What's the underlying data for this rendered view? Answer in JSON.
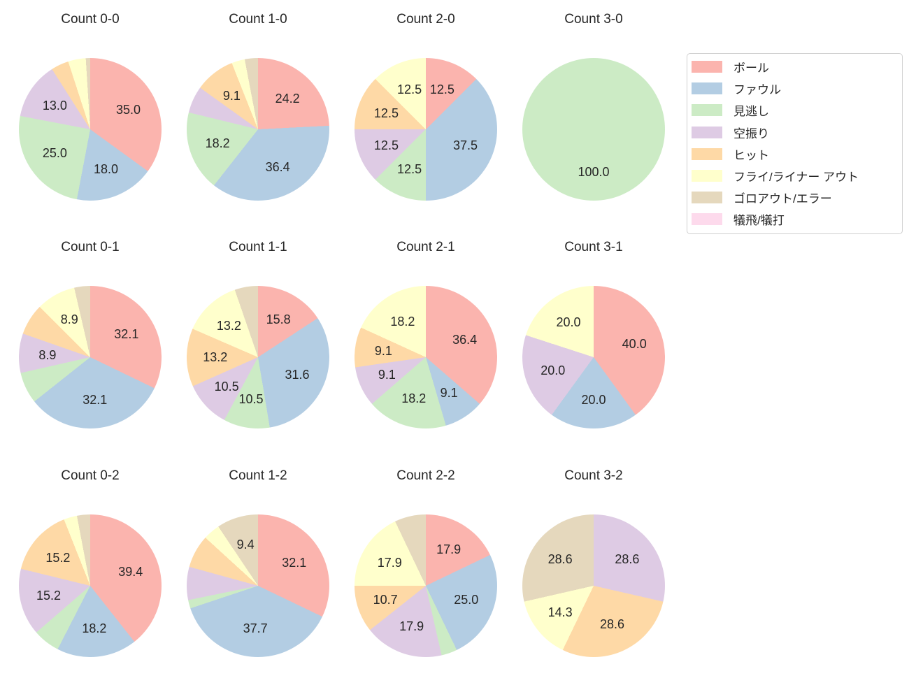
{
  "figure": {
    "background": "#ffffff",
    "text_color": "#262626"
  },
  "legend": {
    "border_color": "#d0d0d0",
    "items": [
      {
        "label": "ボール",
        "color": "#fbb4ae"
      },
      {
        "label": "ファウル",
        "color": "#b3cde3"
      },
      {
        "label": "見逃し",
        "color": "#ccebc5"
      },
      {
        "label": "空振り",
        "color": "#decbe4"
      },
      {
        "label": "ヒット",
        "color": "#fed9a6"
      },
      {
        "label": "フライ/ライナー アウト",
        "color": "#ffffcc"
      },
      {
        "label": "ゴロアウト/エラー",
        "color": "#e5d8bd"
      },
      {
        "label": "犠飛/犠打",
        "color": "#fddaec"
      }
    ]
  },
  "chart_data": [
    {
      "type": "pie",
      "title": "Count 0-0",
      "start_angle": 90,
      "direction": "clockwise",
      "unit": "percent",
      "slices": [
        {
          "category": "ボール",
          "value": 35.0,
          "label": "35.0"
        },
        {
          "category": "ファウル",
          "value": 18.0,
          "label": "18.0"
        },
        {
          "category": "見逃し",
          "value": 25.0,
          "label": "25.0"
        },
        {
          "category": "空振り",
          "value": 13.0,
          "label": "13.0"
        },
        {
          "category": "ヒット",
          "value": 4.0,
          "label": null
        },
        {
          "category": "フライ/ライナー アウト",
          "value": 4.0,
          "label": null
        },
        {
          "category": "ゴロアウト/エラー",
          "value": 1.0,
          "label": null
        }
      ]
    },
    {
      "type": "pie",
      "title": "Count 1-0",
      "start_angle": 90,
      "direction": "clockwise",
      "unit": "percent",
      "slices": [
        {
          "category": "ボール",
          "value": 24.2,
          "label": "24.2"
        },
        {
          "category": "ファウル",
          "value": 36.4,
          "label": "36.4"
        },
        {
          "category": "見逃し",
          "value": 18.2,
          "label": "18.2"
        },
        {
          "category": "空振り",
          "value": 6.1,
          "label": null
        },
        {
          "category": "ヒット",
          "value": 9.1,
          "label": "9.1"
        },
        {
          "category": "フライ/ライナー アウト",
          "value": 3.0,
          "label": null
        },
        {
          "category": "ゴロアウト/エラー",
          "value": 3.0,
          "label": null
        }
      ]
    },
    {
      "type": "pie",
      "title": "Count 2-0",
      "start_angle": 90,
      "direction": "clockwise",
      "unit": "percent",
      "slices": [
        {
          "category": "ボール",
          "value": 12.5,
          "label": "12.5"
        },
        {
          "category": "ファウル",
          "value": 37.5,
          "label": "37.5"
        },
        {
          "category": "見逃し",
          "value": 12.5,
          "label": "12.5"
        },
        {
          "category": "空振り",
          "value": 12.5,
          "label": "12.5"
        },
        {
          "category": "ヒット",
          "value": 12.5,
          "label": "12.5"
        },
        {
          "category": "フライ/ライナー アウト",
          "value": 12.5,
          "label": "12.5"
        }
      ]
    },
    {
      "type": "pie",
      "title": "Count 3-0",
      "start_angle": 90,
      "direction": "clockwise",
      "unit": "percent",
      "slices": [
        {
          "category": "見逃し",
          "value": 100.0,
          "label": "100.0"
        }
      ]
    },
    {
      "type": "pie",
      "title": "Count 0-1",
      "start_angle": 90,
      "direction": "clockwise",
      "unit": "percent",
      "slices": [
        {
          "category": "ボール",
          "value": 32.1,
          "label": "32.1"
        },
        {
          "category": "ファウル",
          "value": 32.1,
          "label": "32.1"
        },
        {
          "category": "見逃し",
          "value": 7.1,
          "label": null
        },
        {
          "category": "空振り",
          "value": 8.9,
          "label": "8.9"
        },
        {
          "category": "ヒット",
          "value": 7.1,
          "label": null
        },
        {
          "category": "フライ/ライナー アウト",
          "value": 8.9,
          "label": "8.9"
        },
        {
          "category": "ゴロアウト/エラー",
          "value": 3.6,
          "label": null
        }
      ]
    },
    {
      "type": "pie",
      "title": "Count 1-1",
      "start_angle": 90,
      "direction": "clockwise",
      "unit": "percent",
      "slices": [
        {
          "category": "ボール",
          "value": 15.8,
          "label": "15.8"
        },
        {
          "category": "ファウル",
          "value": 31.6,
          "label": "31.6"
        },
        {
          "category": "見逃し",
          "value": 10.5,
          "label": "10.5"
        },
        {
          "category": "空振り",
          "value": 10.5,
          "label": "10.5"
        },
        {
          "category": "ヒット",
          "value": 13.2,
          "label": "13.2"
        },
        {
          "category": "フライ/ライナー アウト",
          "value": 13.2,
          "label": "13.2"
        },
        {
          "category": "ゴロアウト/エラー",
          "value": 5.3,
          "label": null
        }
      ]
    },
    {
      "type": "pie",
      "title": "Count 2-1",
      "start_angle": 90,
      "direction": "clockwise",
      "unit": "percent",
      "slices": [
        {
          "category": "ボール",
          "value": 36.4,
          "label": "36.4"
        },
        {
          "category": "ファウル",
          "value": 9.1,
          "label": "9.1"
        },
        {
          "category": "見逃し",
          "value": 18.2,
          "label": "18.2"
        },
        {
          "category": "空振り",
          "value": 9.1,
          "label": "9.1"
        },
        {
          "category": "ヒット",
          "value": 9.1,
          "label": "9.1"
        },
        {
          "category": "フライ/ライナー アウト",
          "value": 18.2,
          "label": "18.2"
        }
      ]
    },
    {
      "type": "pie",
      "title": "Count 3-1",
      "start_angle": 90,
      "direction": "clockwise",
      "unit": "percent",
      "slices": [
        {
          "category": "ボール",
          "value": 40.0,
          "label": "40.0"
        },
        {
          "category": "ファウル",
          "value": 20.0,
          "label": "20.0"
        },
        {
          "category": "空振り",
          "value": 20.0,
          "label": "20.0"
        },
        {
          "category": "フライ/ライナー アウト",
          "value": 20.0,
          "label": "20.0"
        }
      ]
    },
    {
      "type": "pie",
      "title": "Count 0-2",
      "start_angle": 90,
      "direction": "clockwise",
      "unit": "percent",
      "slices": [
        {
          "category": "ボール",
          "value": 39.4,
          "label": "39.4"
        },
        {
          "category": "ファウル",
          "value": 18.2,
          "label": "18.2"
        },
        {
          "category": "見逃し",
          "value": 6.1,
          "label": null
        },
        {
          "category": "空振り",
          "value": 15.2,
          "label": "15.2"
        },
        {
          "category": "ヒット",
          "value": 15.2,
          "label": "15.2"
        },
        {
          "category": "フライ/ライナー アウト",
          "value": 3.0,
          "label": null
        },
        {
          "category": "ゴロアウト/エラー",
          "value": 3.0,
          "label": null
        }
      ]
    },
    {
      "type": "pie",
      "title": "Count 1-2",
      "start_angle": 90,
      "direction": "clockwise",
      "unit": "percent",
      "slices": [
        {
          "category": "ボール",
          "value": 32.1,
          "label": "32.1"
        },
        {
          "category": "ファウル",
          "value": 37.7,
          "label": "37.7"
        },
        {
          "category": "見逃し",
          "value": 1.9,
          "label": null
        },
        {
          "category": "空振り",
          "value": 7.5,
          "label": null
        },
        {
          "category": "ヒット",
          "value": 7.5,
          "label": null
        },
        {
          "category": "フライ/ライナー アウト",
          "value": 3.8,
          "label": null
        },
        {
          "category": "ゴロアウト/エラー",
          "value": 9.4,
          "label": "9.4"
        }
      ]
    },
    {
      "type": "pie",
      "title": "Count 2-2",
      "start_angle": 90,
      "direction": "clockwise",
      "unit": "percent",
      "slices": [
        {
          "category": "ボール",
          "value": 17.9,
          "label": "17.9"
        },
        {
          "category": "ファウル",
          "value": 25.0,
          "label": "25.0"
        },
        {
          "category": "見逃し",
          "value": 3.6,
          "label": null
        },
        {
          "category": "空振り",
          "value": 17.9,
          "label": "17.9"
        },
        {
          "category": "ヒット",
          "value": 10.7,
          "label": "10.7"
        },
        {
          "category": "フライ/ライナー アウト",
          "value": 17.9,
          "label": "17.9"
        },
        {
          "category": "ゴロアウト/エラー",
          "value": 7.1,
          "label": null
        }
      ]
    },
    {
      "type": "pie",
      "title": "Count 3-2",
      "start_angle": 90,
      "direction": "clockwise",
      "unit": "percent",
      "slices": [
        {
          "category": "空振り",
          "value": 28.6,
          "label": "28.6"
        },
        {
          "category": "ヒット",
          "value": 28.6,
          "label": "28.6"
        },
        {
          "category": "フライ/ライナー アウト",
          "value": 14.3,
          "label": "14.3"
        },
        {
          "category": "ゴロアウト/エラー",
          "value": 28.6,
          "label": "28.6"
        }
      ]
    }
  ]
}
